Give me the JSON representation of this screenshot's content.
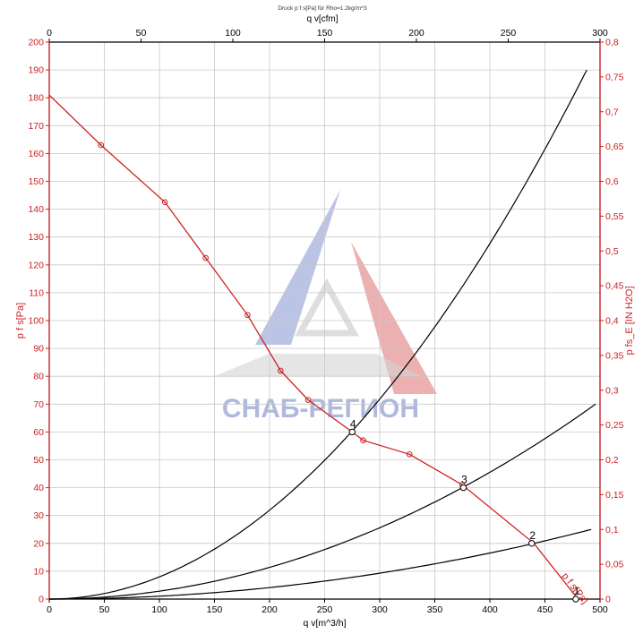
{
  "chart_data": {
    "type": "line",
    "title": "Druck p f s[Pa] für Rho=1.2kg/m^3",
    "xlabel": "q v[m^3/h]",
    "x2label": "q v[cfm]",
    "ylabel": "p f s[Pa]",
    "y2label": "p fs_E [IN H2O]",
    "xlim": [
      0,
      500
    ],
    "x2lim": [
      0,
      300
    ],
    "ylim": [
      0,
      200
    ],
    "y2lim": [
      0,
      0.8
    ],
    "x_ticks": [
      0,
      50,
      100,
      150,
      200,
      250,
      300,
      350,
      400,
      450,
      500
    ],
    "x2_ticks": [
      0,
      50,
      100,
      150,
      200,
      250,
      300
    ],
    "y_ticks": [
      0,
      10,
      20,
      30,
      40,
      50,
      60,
      70,
      80,
      90,
      100,
      110,
      120,
      130,
      140,
      150,
      160,
      170,
      180,
      190,
      200
    ],
    "y2_ticks": [
      "0",
      "0,05",
      "0,1",
      "0,15",
      "0,2",
      "0,25",
      "0,3",
      "0,35",
      "0,4",
      "0,45",
      "0,5",
      "0,55",
      "0,6",
      "0,65",
      "0,7",
      "0,75",
      "0,8"
    ],
    "grid": true,
    "fan_curve": {
      "name": "p f s[Pa]",
      "x": [
        0,
        47,
        105,
        142,
        180,
        210,
        235,
        275,
        285,
        327,
        375,
        440,
        480
      ],
      "y": [
        181,
        163,
        142.5,
        122.5,
        102,
        82,
        71.5,
        60,
        57,
        52,
        41,
        20,
        0
      ]
    },
    "markers": [
      {
        "x": 47,
        "y": 163
      },
      {
        "x": 105,
        "y": 142.5
      },
      {
        "x": 142,
        "y": 122.5
      },
      {
        "x": 180,
        "y": 102
      },
      {
        "x": 210,
        "y": 82
      },
      {
        "x": 235,
        "y": 71.5
      },
      {
        "x": 285,
        "y": 57
      },
      {
        "x": 327,
        "y": 52
      },
      {
        "x": 375,
        "y": 41
      }
    ],
    "system_curves": [
      {
        "x_end": 492,
        "y_end": 25
      },
      {
        "x_end": 496,
        "y_end": 70
      },
      {
        "x_end": 488,
        "y_end": 190
      }
    ],
    "operating_points": [
      {
        "label": "1",
        "x": 478,
        "y": 0
      },
      {
        "label": "2",
        "x": 438,
        "y": 20
      },
      {
        "label": "3",
        "x": 376,
        "y": 40
      },
      {
        "label": "4",
        "x": 275,
        "y": 60
      }
    ],
    "watermark": "СНАБ-РЕГИОН",
    "colors": {
      "fan": "#cc2222",
      "system": "#000000",
      "grid": "#c8c8c8",
      "axis_left": "#cc2222",
      "watermark_blue": "#4a5fb5",
      "watermark_red": "#d44040"
    }
  }
}
